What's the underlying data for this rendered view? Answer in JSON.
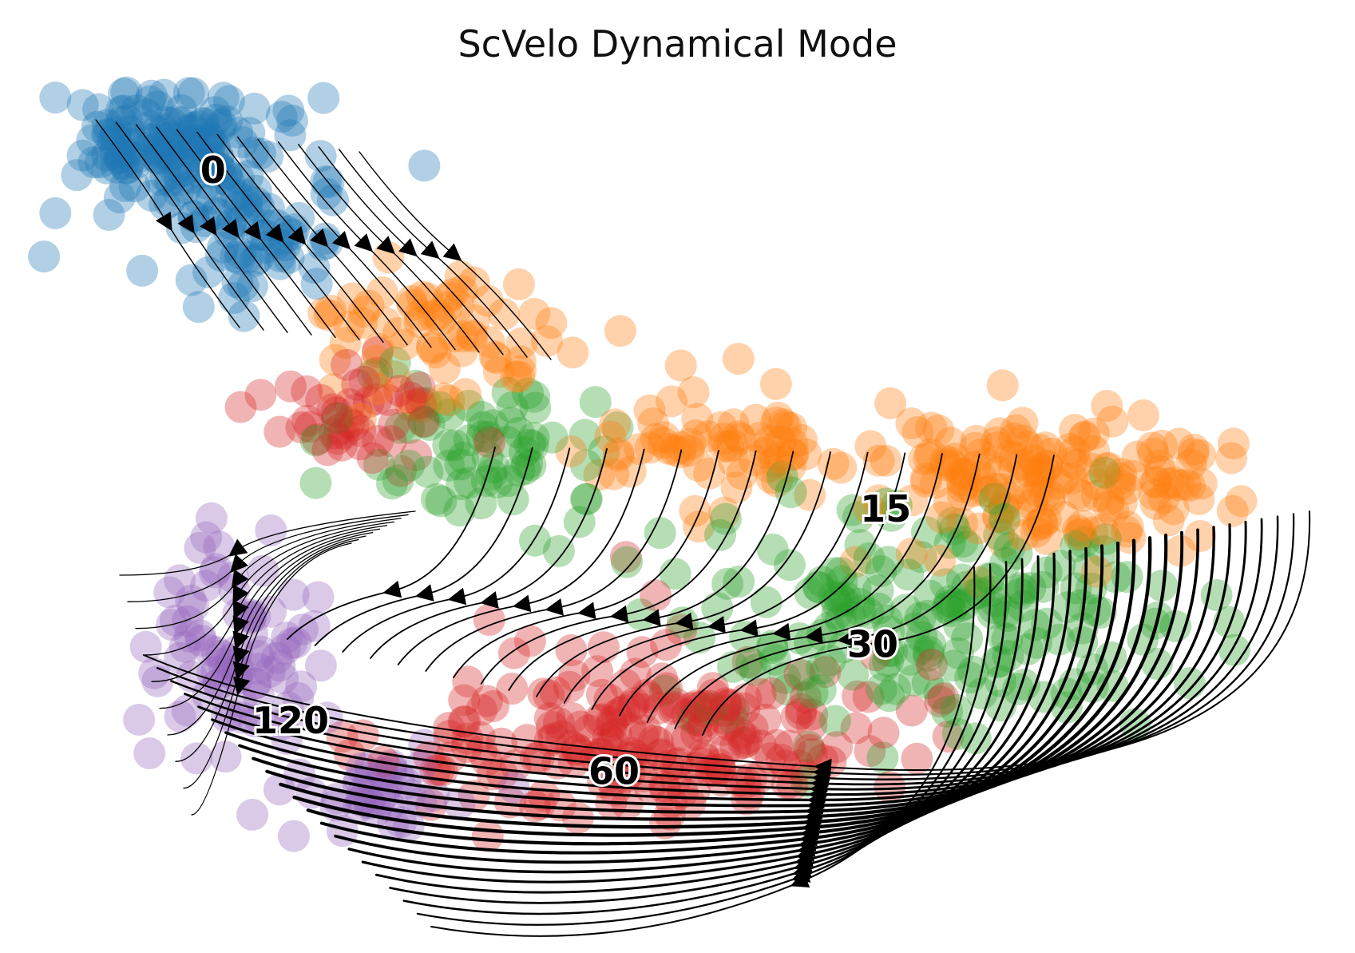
{
  "chart_data": {
    "type": "scatter",
    "title": "ScVelo Dynamical Mode",
    "axes_visible": false,
    "grid": false,
    "legend": "on data",
    "xlim": [
      0,
      1
    ],
    "ylim": [
      0,
      1
    ],
    "point_alpha": 0.35,
    "colors": {
      "0": "#1f77b4",
      "15": "#ff7f0e",
      "30": "#2ca02c",
      "60": "#d62728",
      "120": "#9467bd"
    },
    "clusters": [
      {
        "label": "0",
        "center": [
          0.14,
          0.89
        ],
        "color": "#1f77b4"
      },
      {
        "label": "15",
        "center": [
          0.66,
          0.49
        ],
        "color": "#ff7f0e"
      },
      {
        "label": "30",
        "center": [
          0.65,
          0.33
        ],
        "color": "#2ca02c"
      },
      {
        "label": "60",
        "center": [
          0.45,
          0.18
        ],
        "color": "#d62728"
      },
      {
        "label": "120",
        "center": [
          0.2,
          0.24
        ],
        "color": "#9467bd"
      }
    ],
    "stream_direction": "from 0 through 15 and 30 toward 60 and 120"
  }
}
